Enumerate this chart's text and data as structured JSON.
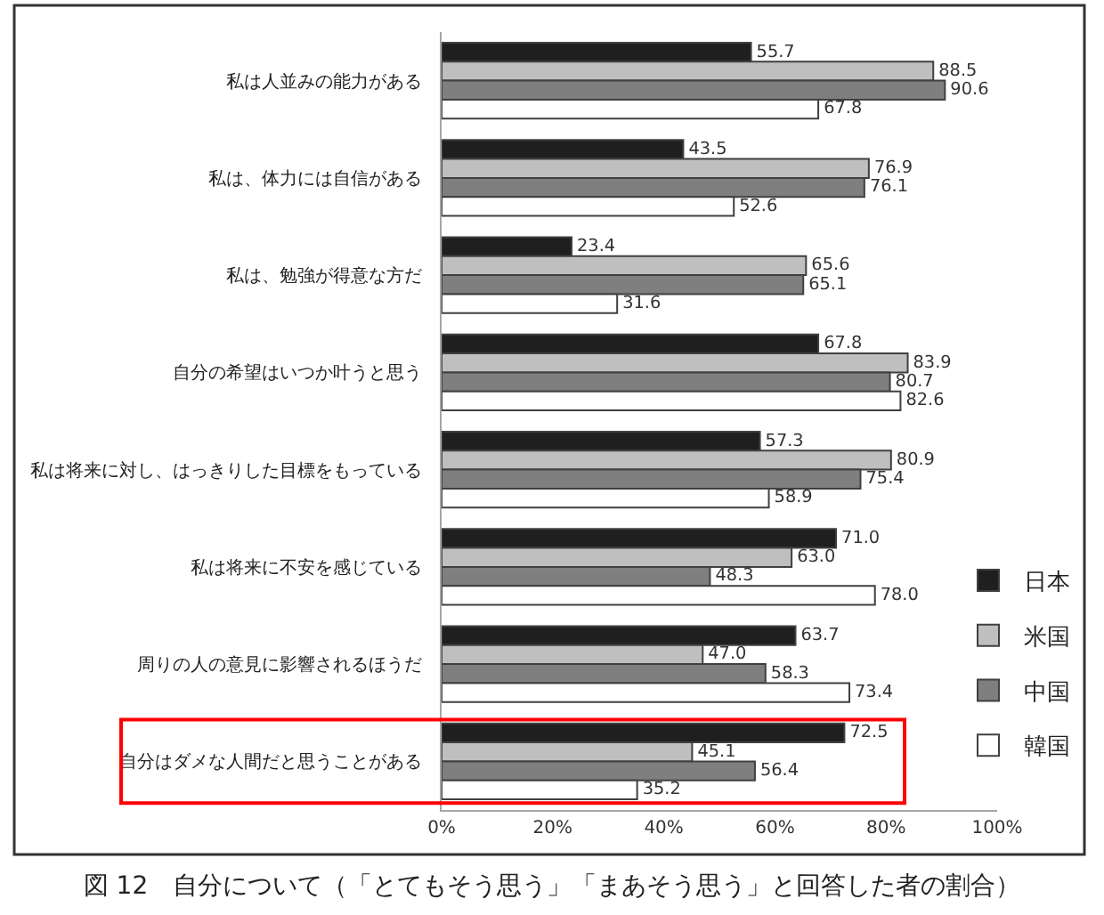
{
  "chart_data": {
    "type": "bar",
    "orientation": "horizontal",
    "title": "図 12　自分について（「とてもそう思う」「まあそう思う」と回答した者の割合）",
    "categories": [
      "私は人並みの能力がある",
      "私は、体力には自信がある",
      "私は、勉強が得意な方だ",
      "自分の希望はいつか叶うと思う",
      "私は将来に対し、はっきりした目標をもっている",
      "私は将来に不安を感じている",
      "周りの人の意見に影響されるほうだ",
      "自分はダメな人間だと思うことがある"
    ],
    "series": [
      {
        "name": "日本",
        "color": "#1f1f1f",
        "values": [
          55.7,
          43.5,
          23.4,
          67.8,
          57.3,
          71.0,
          63.7,
          72.5
        ],
        "value_labels": [
          "55.7",
          "43.5",
          "23.4",
          "67.8",
          "57.3",
          "71.0",
          "63.7",
          "72.5"
        ]
      },
      {
        "name": "米国",
        "color": "#bfbfbf",
        "values": [
          88.5,
          76.9,
          65.6,
          83.9,
          80.9,
          63.0,
          47.0,
          45.1
        ],
        "value_labels": [
          "88.5",
          "76.9",
          "65.6",
          "83.9",
          "80.9",
          "63.0",
          "47.0",
          "45.1"
        ]
      },
      {
        "name": "中国",
        "color": "#7f7f7f",
        "values": [
          90.6,
          76.1,
          65.1,
          80.7,
          75.4,
          48.3,
          58.3,
          56.4
        ],
        "value_labels": [
          "90.6",
          "76.1",
          "65.1",
          "80.7",
          "75.4",
          "48.3",
          "58.3",
          "56.4"
        ]
      },
      {
        "name": "韓国",
        "color": "#ffffff",
        "values": [
          67.8,
          52.6,
          31.6,
          82.6,
          58.9,
          78.0,
          73.4,
          35.2
        ],
        "value_labels": [
          "67.8",
          "52.6",
          "31.6",
          "82.6",
          "58.9",
          "78.0",
          "73.4",
          "35.2"
        ]
      }
    ],
    "xlim": [
      0,
      100
    ],
    "xticks": [
      {
        "value": 0,
        "label": "0%"
      },
      {
        "value": 20,
        "label": "20%"
      },
      {
        "value": 40,
        "label": "40%"
      },
      {
        "value": 60,
        "label": "60%"
      },
      {
        "value": 80,
        "label": "80%"
      },
      {
        "value": 100,
        "label": "100%"
      }
    ],
    "legend": "right"
  }
}
